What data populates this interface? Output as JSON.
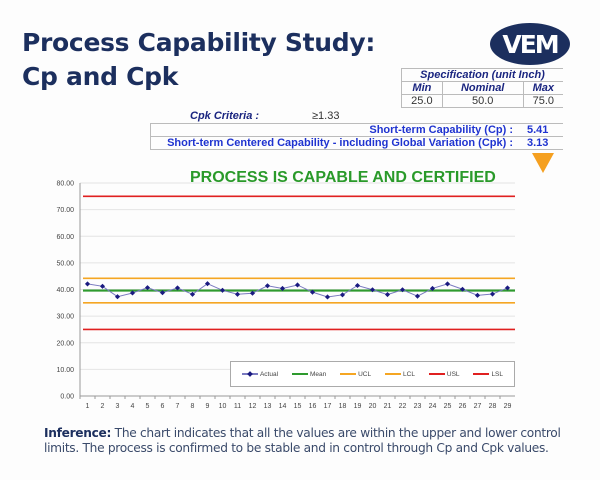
{
  "title_line1": "Process Capability Study:",
  "title_line2": "Cp and Cpk",
  "logo_text": "VEM",
  "spec": {
    "header": "Specification (unit Inch)",
    "cols": [
      "Min",
      "Nominal",
      "Max"
    ],
    "values": [
      "25.0",
      "50.0",
      "75.0"
    ]
  },
  "cpk_criteria": {
    "label": "Cpk Criteria :",
    "value": "≥1.33"
  },
  "capability": [
    {
      "label": "Short-term Capability (Cp) :",
      "value": "5.41"
    },
    {
      "label": "Short-term Centered Capability - including Global Variation (Cpk) :",
      "value": "3.13"
    }
  ],
  "status": "PROCESS IS CAPABLE AND CERTIFIED",
  "colors": {
    "actual": "#1a1a80",
    "mean": "#2e9a2e",
    "ucl": "#f5a623",
    "lcl": "#f5a623",
    "usl": "#e02020",
    "lsl": "#e02020",
    "title": "#1c2f5e",
    "status": "#2a9a2a"
  },
  "chart_data": {
    "type": "line",
    "categories": [
      1,
      2,
      3,
      4,
      5,
      6,
      7,
      8,
      9,
      10,
      11,
      12,
      13,
      14,
      15,
      16,
      17,
      18,
      19,
      20,
      21,
      22,
      23,
      24,
      25,
      26,
      27,
      28,
      29
    ],
    "ylim": [
      0,
      80
    ],
    "yticks": [
      "0.00",
      "10.00",
      "20.00",
      "30.00",
      "40.00",
      "50.00",
      "60.00",
      "70.00",
      "80.00"
    ],
    "grid": true,
    "legend": "bottom-right",
    "series": [
      {
        "name": "Actual",
        "values": [
          42.1,
          41.2,
          37.3,
          38.7,
          40.7,
          38.8,
          40.6,
          38.2,
          42.2,
          39.7,
          38.2,
          38.6,
          41.4,
          40.4,
          41.7,
          39.0,
          37.2,
          38.0,
          41.5,
          39.9,
          38.1,
          39.9,
          37.5,
          40.4,
          42.1,
          40.1,
          37.8,
          38.3,
          40.6
        ]
      },
      {
        "name": "Mean",
        "constant": 39.6
      },
      {
        "name": "UCL",
        "constant": 44.2
      },
      {
        "name": "LCL",
        "constant": 35.0
      },
      {
        "name": "USL",
        "constant": 75
      },
      {
        "name": "LSL",
        "constant": 25
      }
    ]
  },
  "inference": {
    "label": "Inference:",
    "text": " The chart indicates that all the values are within the upper and lower control limits. The process is confirmed to be stable and in control through Cp and Cpk values."
  }
}
